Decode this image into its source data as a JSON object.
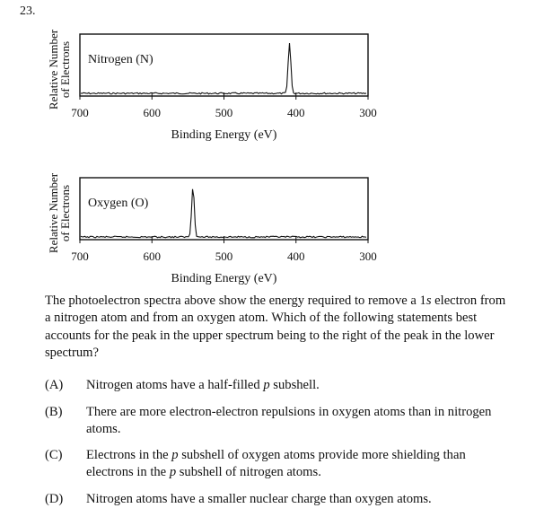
{
  "question_number": "23.",
  "chart_data": [
    {
      "type": "line",
      "label": "Nitrogen (N)",
      "ylabel_line1": "Relative Number",
      "ylabel_line2": "of Electrons",
      "xlabel": "Binding Energy (eV)",
      "xlim": [
        700,
        300
      ],
      "x_reversed": true,
      "xticks": [
        700,
        600,
        500,
        400,
        300
      ],
      "xtick_labels": [
        "700",
        "600",
        "500",
        "400",
        "300"
      ],
      "peak_position_ev": 409,
      "peak_height_relative": 0.85
    },
    {
      "type": "line",
      "label": "Oxygen (O)",
      "ylabel_line1": "Relative Number",
      "ylabel_line2": "of Electrons",
      "xlabel": "Binding Energy (eV)",
      "xlim": [
        700,
        300
      ],
      "x_reversed": true,
      "xticks": [
        700,
        600,
        500,
        400,
        300
      ],
      "xtick_labels": [
        "700",
        "600",
        "500",
        "400",
        "300"
      ],
      "peak_position_ev": 543,
      "peak_height_relative": 0.85
    }
  ],
  "question": {
    "stem_part1": "The photoelectron spectra above show the energy required to remove a 1",
    "stem_italic": "s",
    "stem_part2": "electron from a nitrogen atom and from an oxygen atom. Which of the following statements best accounts for the peak in the upper spectrum being to the right of the peak in the lower spectrum?",
    "choices": [
      {
        "letter": "(A)",
        "pre": "Nitrogen atoms have a half-filled ",
        "it1": "p",
        "mid": " subshell.",
        "it2": "",
        "post": ""
      },
      {
        "letter": "(B)",
        "pre": "There are more electron-electron repulsions in oxygen atoms than in nitrogen atoms.",
        "it1": "",
        "mid": "",
        "it2": "",
        "post": ""
      },
      {
        "letter": "(C)",
        "pre": "Electrons in the ",
        "it1": "p",
        "mid": " subshell of oxygen atoms provide more shielding than electrons in the ",
        "it2": "p",
        "post": " subshell of nitrogen atoms."
      },
      {
        "letter": "(D)",
        "pre": "Nitrogen atoms have a smaller nuclear charge than oxygen atoms.",
        "it1": "",
        "mid": "",
        "it2": "",
        "post": ""
      }
    ]
  }
}
